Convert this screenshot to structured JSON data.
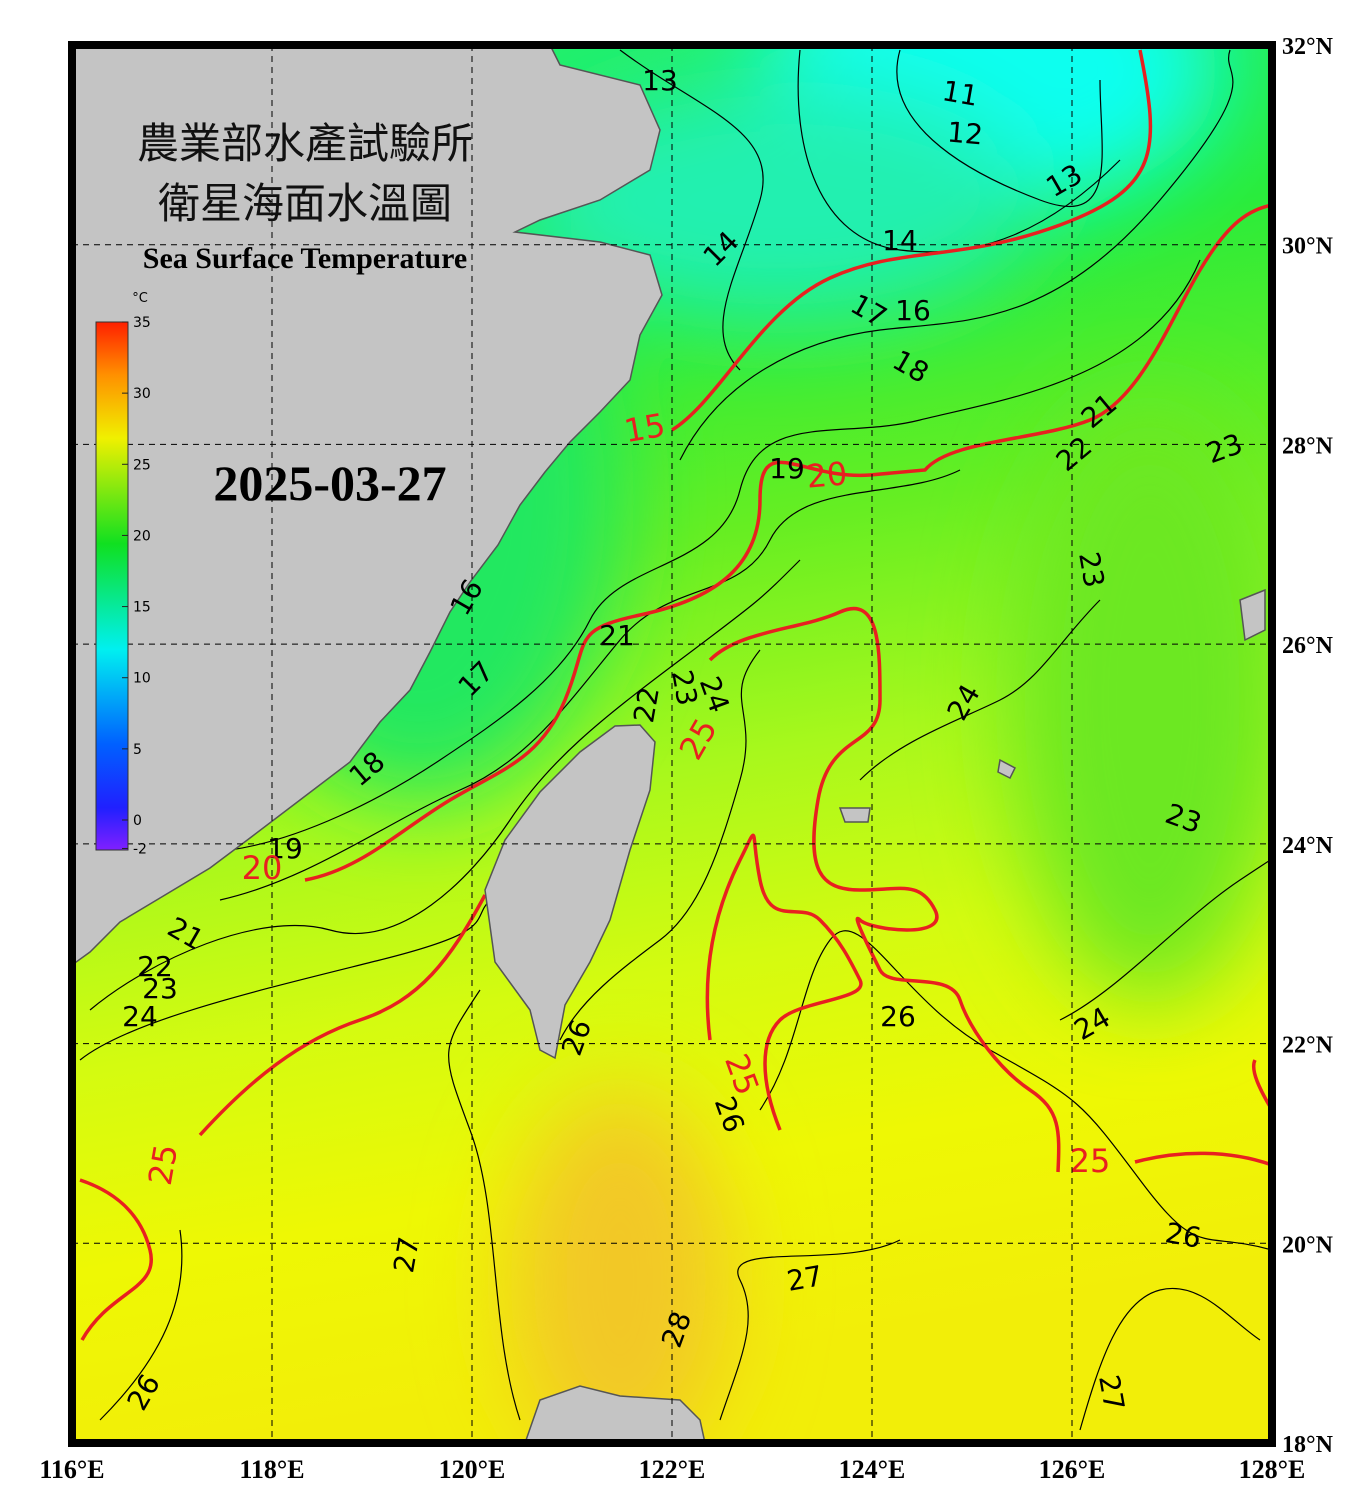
{
  "title_zh": "農業部水產試驗所",
  "subtitle_zh": "衛星海面水溫圖",
  "title_en": "Sea Surface Temperature",
  "date": "2025-03-27",
  "colorbar": {
    "unit": "°C",
    "range": [
      -2,
      35
    ],
    "ticks": [
      35,
      30,
      25,
      20,
      15,
      10,
      5,
      0,
      -2
    ]
  },
  "map": {
    "lonlim": [
      116,
      128
    ],
    "latlim": [
      18,
      32
    ],
    "lon_ticks": [
      {
        "value": 116,
        "label": "116°E"
      },
      {
        "value": 118,
        "label": "118°E"
      },
      {
        "value": 120,
        "label": "120°E"
      },
      {
        "value": 122,
        "label": "122°E"
      },
      {
        "value": 124,
        "label": "124°E"
      },
      {
        "value": 126,
        "label": "126°E"
      },
      {
        "value": 128,
        "label": "128°E"
      }
    ],
    "lat_ticks": [
      {
        "value": 18,
        "label": "18°N"
      },
      {
        "value": 20,
        "label": "20°N"
      },
      {
        "value": 22,
        "label": "22°N"
      },
      {
        "value": 24,
        "label": "24°N"
      },
      {
        "value": 26,
        "label": "26°N"
      },
      {
        "value": 28,
        "label": "28°N"
      },
      {
        "value": 30,
        "label": "30°N"
      },
      {
        "value": 32,
        "label": "32°N"
      }
    ],
    "contour_labels": [
      13,
      11,
      12,
      13,
      14,
      14,
      17,
      16,
      18,
      15,
      21,
      22,
      23,
      19,
      20,
      23,
      21,
      16,
      17,
      23,
      24,
      22,
      25,
      24,
      18,
      23,
      19,
      20,
      21,
      22,
      23,
      24,
      26,
      26,
      24,
      25,
      26,
      25,
      25,
      26,
      27,
      27,
      28,
      26,
      27
    ]
  }
}
